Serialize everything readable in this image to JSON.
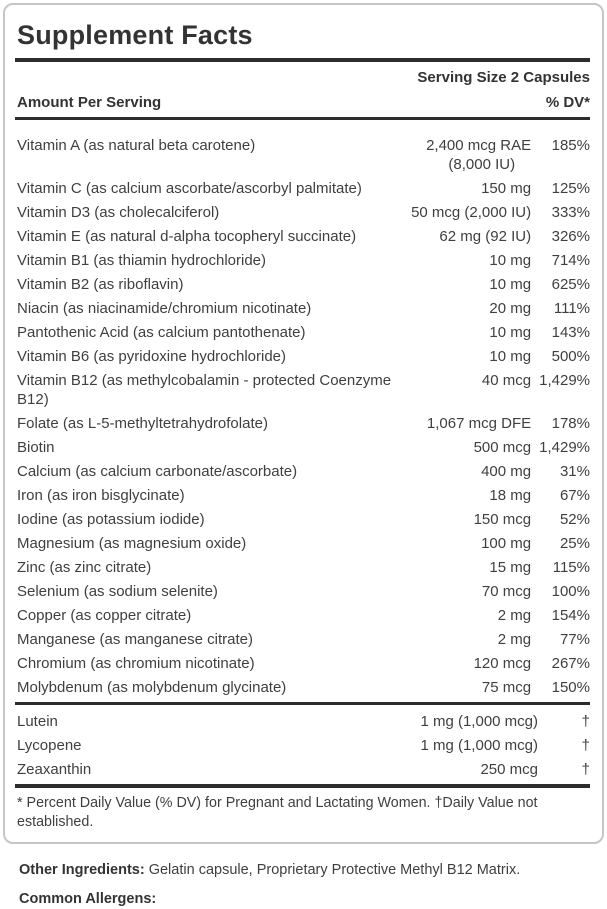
{
  "panel": {
    "title": "Supplement Facts",
    "serving_size": "Serving Size 2 Capsules",
    "amount_header": "Amount Per Serving",
    "dv_header": "% DV*",
    "footnote": "* Percent Daily Value (% DV) for Pregnant and Lactating Women. †Daily Value not established."
  },
  "nutrients": [
    {
      "name": "Vitamin A (as natural beta carotene)",
      "amount": "2,400 mcg RAE",
      "amount2": "(8,000 IU)",
      "dv": "185%"
    },
    {
      "name": "Vitamin C (as calcium ascorbate/ascorbyl palmitate)",
      "amount": "150 mg",
      "dv": "125%"
    },
    {
      "name": "Vitamin D3 (as cholecalciferol)",
      "amount": "50 mcg (2,000 IU)",
      "dv": "333%"
    },
    {
      "name": "Vitamin E (as natural d-alpha tocopheryl succinate)",
      "amount": "62 mg (92 IU)",
      "dv": "326%"
    },
    {
      "name": "Vitamin B1 (as thiamin hydrochloride)",
      "amount": "10 mg",
      "dv": "714%"
    },
    {
      "name": "Vitamin B2 (as riboflavin)",
      "amount": "10 mg",
      "dv": "625%"
    },
    {
      "name": "Niacin (as niacinamide/chromium nicotinate)",
      "amount": "20 mg",
      "dv": "111%"
    },
    {
      "name": "Pantothenic Acid (as calcium pantothenate)",
      "amount": "10 mg",
      "dv": "143%"
    },
    {
      "name": "Vitamin B6 (as pyridoxine hydrochloride)",
      "amount": "10 mg",
      "dv": "500%"
    },
    {
      "name": "Vitamin B12 (as methylcobalamin - protected Coenzyme B12)",
      "amount": "40 mcg",
      "dv": "1,429%"
    },
    {
      "name": "Folate (as L-5-methyltetrahydrofolate)",
      "amount": "1,067 mcg DFE",
      "dv": "178%"
    },
    {
      "name": "Biotin",
      "amount": "500 mcg",
      "dv": "1,429%"
    },
    {
      "name": "Calcium (as calcium carbonate/ascorbate)",
      "amount": "400 mg",
      "dv": "31%"
    },
    {
      "name": "Iron (as iron bisglycinate)",
      "amount": "18 mg",
      "dv": "67%"
    },
    {
      "name": "Iodine (as potassium iodide)",
      "amount": "150 mcg",
      "dv": "52%"
    },
    {
      "name": "Magnesium (as magnesium oxide)",
      "amount": "100 mg",
      "dv": "25%"
    },
    {
      "name": "Zinc (as zinc citrate)",
      "amount": "15 mg",
      "dv": "115%"
    },
    {
      "name": "Selenium (as sodium selenite)",
      "amount": "70 mcg",
      "dv": "100%"
    },
    {
      "name": "Copper (as copper citrate)",
      "amount": "2 mg",
      "dv": "154%"
    },
    {
      "name": "Manganese (as manganese citrate)",
      "amount": "2 mg",
      "dv": "77%"
    },
    {
      "name": "Chromium (as chromium nicotinate)",
      "amount": "120 mcg",
      "dv": "267%"
    },
    {
      "name": "Molybdenum (as molybdenum glycinate)",
      "amount": "75 mcg",
      "dv": "150%"
    }
  ],
  "botanicals": [
    {
      "name": "Lutein",
      "amount": "1 mg (1,000 mcg)",
      "dv": "†"
    },
    {
      "name": "Lycopene",
      "amount": "1 mg (1,000 mcg)",
      "dv": "†"
    },
    {
      "name": "Zeaxanthin",
      "amount": "250 mcg",
      "dv": "†"
    }
  ],
  "footer": {
    "other_ingredients_label": "Other Ingredients:",
    "other_ingredients_text": "Gelatin capsule, Proprietary Protective Methyl B12 Matrix.",
    "common_allergens_label": "Common Allergens:"
  },
  "colors": {
    "text": "#3f3f3f",
    "heading": "#333333",
    "rule": "#2d2d2d",
    "border": "#c6c6c6"
  }
}
